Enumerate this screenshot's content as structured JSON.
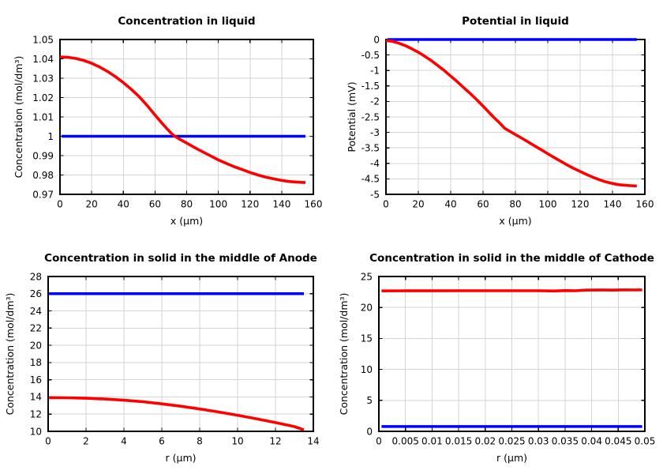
{
  "figure": {
    "background": "#ffffff",
    "layout": "2x2 grid of line plots"
  },
  "colors": {
    "red_series": "#ff0000",
    "blue_series": "#0000ff",
    "grid": "#d4d4d4",
    "frame": "#000000",
    "text": "#000000"
  },
  "chart_data": [
    {
      "type": "line",
      "title": "Concentration in liquid",
      "xlabel": "x (µm)",
      "ylabel": "Concentration (mol/dm³)",
      "xlim": [
        0,
        160
      ],
      "ylim": [
        0.97,
        1.05
      ],
      "grid": true,
      "legend": "none",
      "xtick_values": [
        0,
        20,
        40,
        60,
        80,
        100,
        120,
        140,
        160
      ],
      "xtick_labels": [
        "0",
        "20",
        "40",
        "60",
        "80",
        "100",
        "120",
        "140",
        "160"
      ],
      "ytick_values": [
        0.97,
        0.98,
        0.99,
        1,
        1.01,
        1.02,
        1.03,
        1.04,
        1.05
      ],
      "ytick_labels": [
        "0.97",
        "0.98",
        "0.99",
        "1",
        "1.01",
        "1.02",
        "1.03",
        "1.04",
        "1.05"
      ],
      "series": [
        {
          "name": "reference-line",
          "color": "#0000ff",
          "width": 3.5,
          "points": [
            [
              1,
              1
            ],
            [
              155,
              1
            ]
          ]
        },
        {
          "name": "profile",
          "color": "#ff0000",
          "width": 3.6,
          "points": [
            [
              0,
              1.041
            ],
            [
              5,
              1.0408
            ],
            [
              10,
              1.0402
            ],
            [
              15,
              1.0392
            ],
            [
              20,
              1.0377
            ],
            [
              25,
              1.0358
            ],
            [
              30,
              1.0335
            ],
            [
              35,
              1.0308
            ],
            [
              40,
              1.0277
            ],
            [
              45,
              1.0243
            ],
            [
              50,
              1.0205
            ],
            [
              55,
              1.016
            ],
            [
              60,
              1.011
            ],
            [
              64,
              1.0072
            ],
            [
              68,
              1.0035
            ],
            [
              71,
              1.001
            ],
            [
              73,
              0.9998
            ],
            [
              76,
              0.9983
            ],
            [
              80,
              0.9965
            ],
            [
              85,
              0.9942
            ],
            [
              90,
              0.992
            ],
            [
              95,
              0.9899
            ],
            [
              100,
              0.9878
            ],
            [
              105,
              0.986
            ],
            [
              110,
              0.9843
            ],
            [
              115,
              0.9828
            ],
            [
              120,
              0.9813
            ],
            [
              125,
              0.98
            ],
            [
              130,
              0.9789
            ],
            [
              135,
              0.978
            ],
            [
              140,
              0.9772
            ],
            [
              145,
              0.9766
            ],
            [
              150,
              0.9763
            ],
            [
              155,
              0.9761
            ]
          ]
        }
      ]
    },
    {
      "type": "line",
      "title": "Potential in liquid",
      "xlabel": "x (µm)",
      "ylabel": "Potential (mV)",
      "xlim": [
        0,
        160
      ],
      "ylim": [
        -5,
        0
      ],
      "grid": true,
      "legend": "none",
      "xtick_values": [
        0,
        20,
        40,
        60,
        80,
        100,
        120,
        140,
        160
      ],
      "xtick_labels": [
        "0",
        "20",
        "40",
        "60",
        "80",
        "100",
        "120",
        "140",
        "160"
      ],
      "ytick_values": [
        -5,
        -4.5,
        -4,
        -3.5,
        -3,
        -2.5,
        -2,
        -1.5,
        -1,
        -0.5,
        0
      ],
      "ytick_labels": [
        "-5",
        "-4.5",
        "-4",
        "-3.5",
        "-3",
        "-2.5",
        "-2",
        "-1.5",
        "-1",
        "-0.5",
        "0"
      ],
      "series": [
        {
          "name": "reference-line",
          "color": "#0000ff",
          "width": 3.5,
          "points": [
            [
              1,
              0
            ],
            [
              155,
              0
            ]
          ]
        },
        {
          "name": "profile",
          "color": "#ff0000",
          "width": 3.6,
          "points": [
            [
              0,
              -0.03
            ],
            [
              4,
              -0.06
            ],
            [
              8,
              -0.12
            ],
            [
              12,
              -0.2
            ],
            [
              16,
              -0.3
            ],
            [
              20,
              -0.41
            ],
            [
              24,
              -0.54
            ],
            [
              28,
              -0.68
            ],
            [
              32,
              -0.84
            ],
            [
              36,
              -1
            ],
            [
              40,
              -1.18
            ],
            [
              44,
              -1.36
            ],
            [
              48,
              -1.55
            ],
            [
              52,
              -1.74
            ],
            [
              56,
              -1.94
            ],
            [
              60,
              -2.15
            ],
            [
              64,
              -2.37
            ],
            [
              67,
              -2.53
            ],
            [
              70,
              -2.68
            ],
            [
              72,
              -2.79
            ],
            [
              73.5,
              -2.87
            ],
            [
              76,
              -2.95
            ],
            [
              80,
              -3.07
            ],
            [
              84,
              -3.19
            ],
            [
              88,
              -3.31
            ],
            [
              92,
              -3.44
            ],
            [
              96,
              -3.56
            ],
            [
              100,
              -3.69
            ],
            [
              104,
              -3.81
            ],
            [
              108,
              -3.93
            ],
            [
              112,
              -4.05
            ],
            [
              116,
              -4.16
            ],
            [
              120,
              -4.26
            ],
            [
              124,
              -4.36
            ],
            [
              128,
              -4.45
            ],
            [
              132,
              -4.53
            ],
            [
              136,
              -4.6
            ],
            [
              140,
              -4.65
            ],
            [
              144,
              -4.69
            ],
            [
              148,
              -4.71
            ],
            [
              151,
              -4.72
            ],
            [
              155,
              -4.73
            ]
          ]
        }
      ]
    },
    {
      "type": "line",
      "title": "Concentration in solid in the middle of Anode",
      "xlabel": "r (µm)",
      "ylabel": "Concentration (mol/dm³)",
      "xlim": [
        0,
        14
      ],
      "ylim": [
        10,
        28
      ],
      "grid": true,
      "legend": "none",
      "xtick_values": [
        0,
        2,
        4,
        6,
        8,
        10,
        12,
        14
      ],
      "xtick_labels": [
        "0",
        "2",
        "4",
        "6",
        "8",
        "10",
        "12",
        "14"
      ],
      "ytick_values": [
        10,
        12,
        14,
        16,
        18,
        20,
        22,
        24,
        26,
        28
      ],
      "ytick_labels": [
        "10",
        "12",
        "14",
        "16",
        "18",
        "20",
        "22",
        "24",
        "26",
        "28"
      ],
      "series": [
        {
          "name": "reference-line",
          "color": "#0000ff",
          "width": 3.5,
          "points": [
            [
              0.05,
              26
            ],
            [
              13.5,
              26
            ]
          ]
        },
        {
          "name": "profile",
          "color": "#ff0000",
          "width": 3.6,
          "points": [
            [
              0.05,
              13.92
            ],
            [
              1,
              13.9
            ],
            [
              2,
              13.85
            ],
            [
              3,
              13.76
            ],
            [
              4,
              13.62
            ],
            [
              5,
              13.44
            ],
            [
              6,
              13.2
            ],
            [
              7,
              12.92
            ],
            [
              8,
              12.6
            ],
            [
              9,
              12.25
            ],
            [
              10,
              11.87
            ],
            [
              11,
              11.46
            ],
            [
              12,
              11.02
            ],
            [
              13,
              10.55
            ],
            [
              13.5,
              10.17
            ]
          ]
        }
      ]
    },
    {
      "type": "line",
      "title": "Concentration in solid in the middle of Cathode",
      "xlabel": "r (µm)",
      "ylabel": "Concentration (mol/dm³)",
      "xlim": [
        0,
        0.05
      ],
      "ylim": [
        0,
        25
      ],
      "grid": true,
      "legend": "none",
      "xtick_values": [
        0,
        0.005,
        0.01,
        0.015,
        0.02,
        0.025,
        0.03,
        0.035,
        0.04,
        0.045,
        0.05
      ],
      "xtick_labels": [
        "0",
        "0.005",
        "0.01",
        "0.015",
        "0.02",
        "0.025",
        "0.03",
        "0.035",
        "0.04",
        "0.045",
        "0.05"
      ],
      "ytick_values": [
        0,
        5,
        10,
        15,
        20,
        25
      ],
      "ytick_labels": [
        "0",
        "5",
        "10",
        "15",
        "20",
        "25"
      ],
      "series": [
        {
          "name": "reference-line",
          "color": "#0000ff",
          "width": 3.5,
          "points": [
            [
              0.0005,
              0.78
            ],
            [
              0.0495,
              0.78
            ]
          ]
        },
        {
          "name": "profile",
          "color": "#ff0000",
          "width": 3.6,
          "points": [
            [
              0.0005,
              22.68
            ],
            [
              0.005,
              22.69
            ],
            [
              0.01,
              22.69
            ],
            [
              0.015,
              22.7
            ],
            [
              0.02,
              22.7
            ],
            [
              0.025,
              22.7
            ],
            [
              0.03,
              22.7
            ],
            [
              0.033,
              22.67
            ],
            [
              0.035,
              22.73
            ],
            [
              0.037,
              22.7
            ],
            [
              0.039,
              22.8
            ],
            [
              0.042,
              22.82
            ],
            [
              0.044,
              22.8
            ],
            [
              0.046,
              22.85
            ],
            [
              0.048,
              22.83
            ],
            [
              0.0495,
              22.85
            ]
          ]
        }
      ]
    }
  ]
}
